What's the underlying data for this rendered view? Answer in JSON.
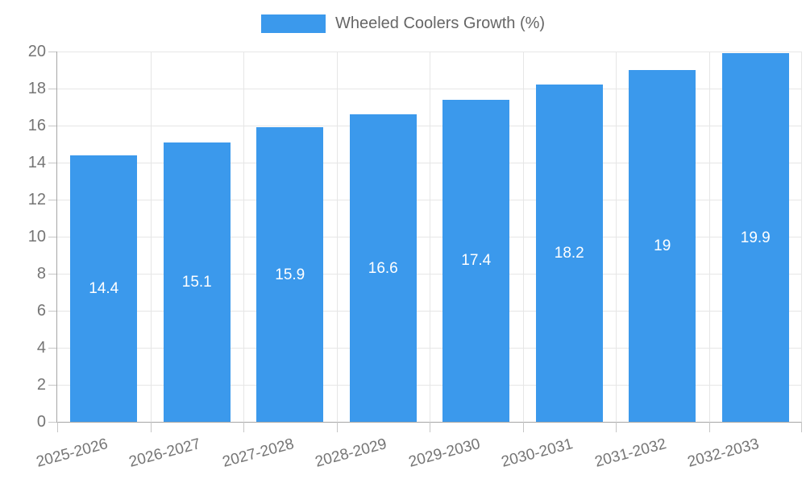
{
  "legend": {
    "label": "Wheeled Coolers Growth (%)"
  },
  "colors": {
    "bar": "#3B99EC",
    "grid": "#e6e6e6",
    "axis": "#a6a6a6",
    "tick": "#c6c6c6",
    "tick_text": "#757575",
    "legend_text": "#666666",
    "value_text": "#ffffff"
  },
  "chart_data": {
    "type": "bar",
    "title": "Wheeled Coolers Growth (%)",
    "categories": [
      "2025-2026",
      "2026-2027",
      "2027-2028",
      "2028-2029",
      "2029-2030",
      "2030-2031",
      "2031-2032",
      "2032-2033"
    ],
    "series": [
      {
        "name": "Wheeled Coolers Growth (%)",
        "values": [
          14.4,
          15.1,
          15.9,
          16.6,
          17.4,
          18.2,
          19,
          19.9
        ]
      }
    ],
    "xlabel": "",
    "ylabel": "",
    "ylim": [
      0,
      20
    ],
    "ytick_step": 2,
    "yticks": [
      0,
      2,
      4,
      6,
      8,
      10,
      12,
      14,
      16,
      18,
      20
    ],
    "grid": true,
    "legend_position": "top",
    "value_labels": "inside-center",
    "x_tick_rotation_deg": -15
  }
}
